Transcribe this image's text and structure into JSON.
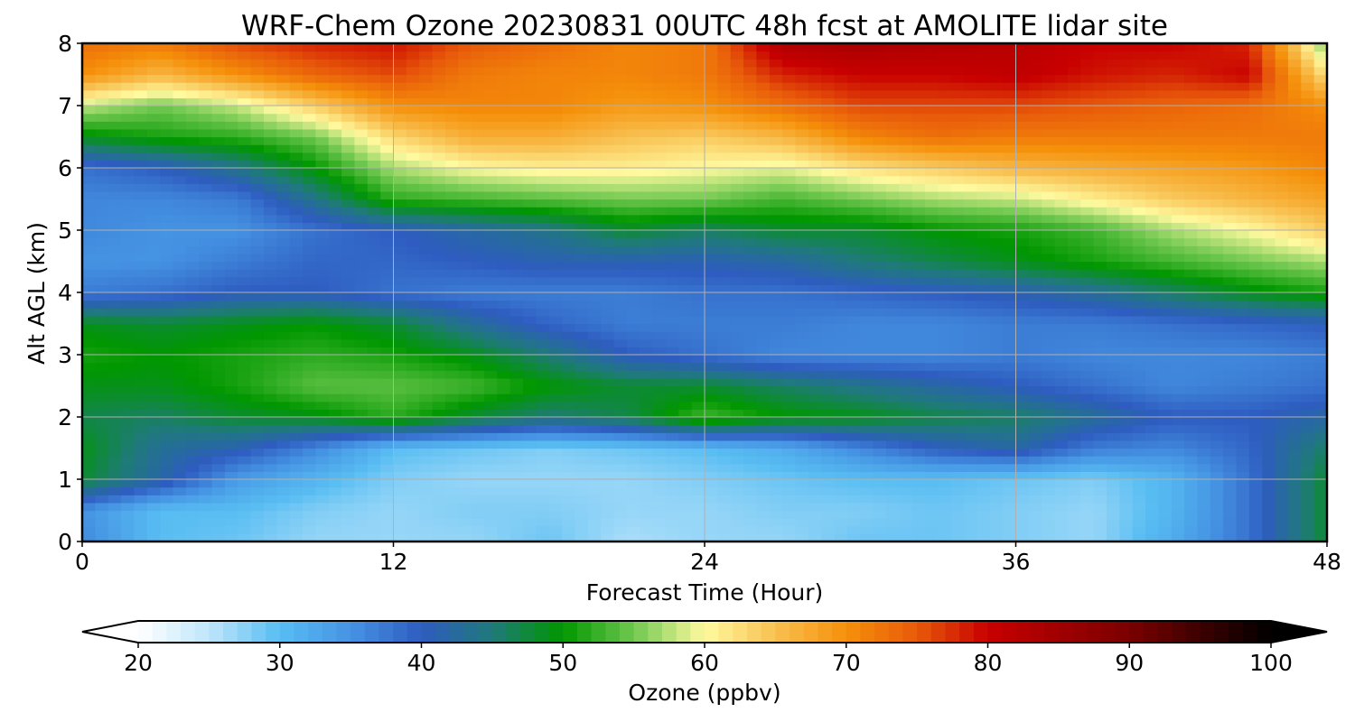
{
  "chart_data": {
    "type": "heatmap",
    "title": "WRF-Chem Ozone  20230831 00UTC 48h fcst at AMOLITE lidar site",
    "xlabel": "Forecast Time (Hour)",
    "ylabel": "Alt AGL (km)",
    "xlim": [
      0,
      48
    ],
    "ylim": [
      0,
      8
    ],
    "xticks": [
      "0",
      "12",
      "24",
      "36",
      "48"
    ],
    "yticks": [
      "0",
      "1",
      "2",
      "3",
      "4",
      "5",
      "6",
      "7",
      "8"
    ],
    "grid": true,
    "colorbar": {
      "label": "Ozone  (ppbv)",
      "min": 20,
      "max": 100,
      "ticks": [
        "20",
        "30",
        "40",
        "50",
        "60",
        "70",
        "80",
        "90",
        "100"
      ],
      "extend": "both",
      "colors": [
        {
          "value": 20,
          "color": "#ffffff"
        },
        {
          "value": 25,
          "color": "#bfe6fb"
        },
        {
          "value": 30,
          "color": "#58bdf2"
        },
        {
          "value": 35,
          "color": "#4593e3"
        },
        {
          "value": 40,
          "color": "#2e5cc0"
        },
        {
          "value": 45,
          "color": "#1f7a7a"
        },
        {
          "value": 50,
          "color": "#009700"
        },
        {
          "value": 55,
          "color": "#70c850"
        },
        {
          "value": 60,
          "color": "#fffaa0"
        },
        {
          "value": 65,
          "color": "#f8c050"
        },
        {
          "value": 70,
          "color": "#f5900a"
        },
        {
          "value": 75,
          "color": "#e85a0a"
        },
        {
          "value": 80,
          "color": "#c80000"
        },
        {
          "value": 90,
          "color": "#7a0000"
        },
        {
          "value": 100,
          "color": "#000000"
        }
      ]
    },
    "times": [
      0,
      3,
      6,
      9,
      12,
      15,
      18,
      21,
      24,
      27,
      30,
      33,
      36,
      39,
      42,
      45,
      48
    ],
    "altitudes": [
      0,
      0.5,
      1,
      1.5,
      2,
      2.5,
      3,
      3.5,
      4,
      4.5,
      5,
      5.5,
      6,
      6.5,
      7,
      7.5,
      8
    ],
    "ozone_ppbv": [
      [
        36,
        30,
        29,
        27,
        27,
        27,
        29,
        26,
        27,
        27,
        29,
        29,
        28,
        27,
        32,
        38,
        48
      ],
      [
        35,
        30,
        30,
        28,
        27,
        28,
        28,
        27,
        27,
        28,
        28,
        29,
        28,
        27,
        31,
        38,
        48
      ],
      [
        48,
        42,
        34,
        31,
        28,
        27,
        27,
        27,
        28,
        29,
        30,
        30,
        29,
        28,
        31,
        38,
        48
      ],
      [
        49,
        43,
        41,
        36,
        30,
        29,
        28,
        29,
        30,
        32,
        36,
        40,
        42,
        37,
        36,
        39,
        46
      ],
      [
        47,
        46,
        48,
        49,
        52,
        48,
        45,
        47,
        53,
        50,
        49,
        47,
        46,
        43,
        40,
        40,
        42
      ],
      [
        49,
        49,
        51,
        54,
        54,
        53,
        50,
        48,
        48,
        46,
        44,
        42,
        40,
        38,
        36,
        37,
        38
      ],
      [
        51,
        50,
        51,
        52,
        51,
        49,
        45,
        40,
        38,
        36,
        36,
        36,
        37,
        36,
        36,
        36,
        37
      ],
      [
        49,
        48,
        49,
        50,
        48,
        43,
        39,
        37,
        37,
        37,
        36,
        36,
        37,
        37,
        38,
        39,
        40
      ],
      [
        37,
        38,
        40,
        40,
        38,
        37,
        37,
        37,
        38,
        38,
        39,
        40,
        41,
        43,
        46,
        49,
        51
      ],
      [
        35,
        35,
        37,
        39,
        39,
        40,
        41,
        41,
        41,
        42,
        45,
        47,
        49,
        51,
        53,
        55,
        57
      ],
      [
        36,
        35,
        35,
        38,
        40,
        42,
        44,
        48,
        46,
        48,
        48,
        50,
        51,
        53,
        57,
        60,
        64
      ],
      [
        36,
        36,
        37,
        44,
        52,
        53,
        54,
        55,
        55,
        53,
        55,
        57,
        58,
        61,
        64,
        66,
        68
      ],
      [
        38,
        40,
        44,
        50,
        57,
        60,
        61,
        61,
        60,
        59,
        62,
        64,
        66,
        67,
        68,
        69,
        71
      ],
      [
        49,
        51,
        52,
        55,
        63,
        67,
        67,
        65,
        64,
        66,
        71,
        73,
        72,
        72,
        72,
        72,
        72
      ],
      [
        58,
        55,
        58,
        64,
        70,
        71,
        71,
        69,
        70,
        73,
        76,
        76,
        76,
        75,
        74,
        73,
        70
      ],
      [
        70,
        66,
        70,
        74,
        76,
        72,
        71,
        71,
        72,
        78,
        80,
        80,
        81,
        79,
        78,
        80,
        62
      ],
      [
        73,
        72,
        76,
        78,
        79,
        75,
        73,
        71,
        72,
        83,
        84,
        83,
        82,
        80,
        80,
        78,
        55
      ]
    ]
  }
}
